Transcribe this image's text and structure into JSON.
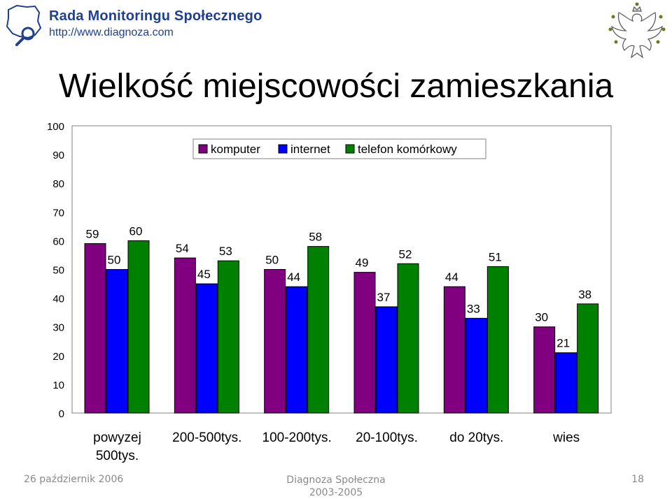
{
  "header": {
    "brand": "Rada Monitoringu Społecznego",
    "url": "http://www.diagnoza.com"
  },
  "footer": {
    "date": "26 październik 2006",
    "center_line1": "Diagnoza Społeczna",
    "center_line2": "2003-2005",
    "page": "18"
  },
  "colors": {
    "komputer": "#800080",
    "internet": "#0000ff",
    "telefon": "#008000",
    "header_text": "#1f3f8f",
    "footer_text": "#8a8a8a"
  },
  "chart_data": {
    "type": "bar",
    "title": "Wielkość miejscowości zamieszkania",
    "categories": [
      [
        "powyzej",
        "500tys."
      ],
      [
        "200-500tys."
      ],
      [
        "100-200tys."
      ],
      [
        "20-100tys."
      ],
      [
        "do 20tys."
      ],
      [
        "wies"
      ]
    ],
    "series": [
      {
        "name": "komputer",
        "values": [
          59,
          54,
          50,
          49,
          44,
          30
        ]
      },
      {
        "name": "internet",
        "values": [
          50,
          45,
          44,
          37,
          33,
          21
        ]
      },
      {
        "name": "telefon komórkowy",
        "values": [
          60,
          53,
          58,
          52,
          51,
          38
        ]
      }
    ],
    "ylim": [
      0,
      100
    ],
    "yticks": [
      "0",
      "10",
      "20",
      "30",
      "40",
      "50",
      "60",
      "70",
      "80",
      "90",
      "100"
    ],
    "legend_position": "top",
    "grid": false,
    "data_labels": true
  }
}
